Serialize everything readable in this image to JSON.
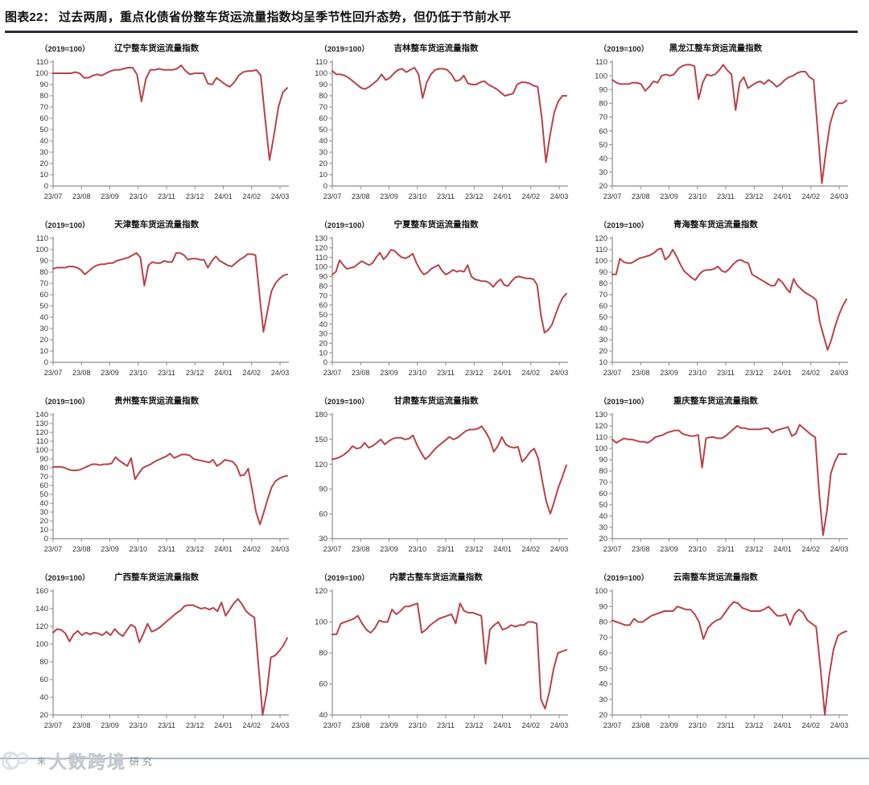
{
  "header": {
    "title": "图表22：  过去两周，重点化债省份整车货运流量指数均呈季节性回升态势，但仍低于节前水平"
  },
  "footer": {
    "watermark_prefix": "来",
    "watermark": "大数跨境",
    "watermark_suffix": "研究"
  },
  "style": {
    "line_color": "#b8424a",
    "axis_color": "#8c8c8c",
    "label_color": "#333333",
    "title_rule_color": "#2b2f3a"
  },
  "chart_data": [
    {
      "type": "line",
      "title": "辽宁整车货运流量指数",
      "unit_label": "（2019=100）",
      "ylim": [
        0,
        110
      ],
      "ystep": 10,
      "x_tick_labels": [
        "23/07",
        "23/08",
        "23/09",
        "23/10",
        "23/11",
        "23/12",
        "24/01",
        "24/02",
        "24/03"
      ],
      "values": [
        100,
        100,
        100,
        100,
        100,
        101,
        100,
        96,
        96,
        98,
        99,
        98,
        100,
        102,
        103,
        103,
        104,
        105,
        105,
        99,
        75,
        95,
        103,
        103,
        104,
        103,
        103,
        103,
        104,
        107,
        102,
        99,
        100,
        100,
        100,
        91,
        90,
        96,
        93,
        90,
        88,
        92,
        98,
        101,
        102,
        102,
        103,
        98,
        60,
        23,
        45,
        70,
        83,
        87
      ]
    },
    {
      "type": "line",
      "title": "吉林整车货运流量指数",
      "unit_label": "（2019=100）",
      "ylim": [
        0,
        110
      ],
      "ystep": 10,
      "x_tick_labels": [
        "23/07",
        "23/08",
        "23/09",
        "23/10",
        "23/11",
        "23/12",
        "24/01",
        "24/02",
        "24/03"
      ],
      "values": [
        102,
        99,
        99,
        98,
        96,
        93,
        90,
        87,
        86,
        88,
        91,
        94,
        99,
        94,
        96,
        100,
        103,
        104,
        101,
        103,
        105,
        99,
        78,
        92,
        99,
        103,
        104,
        104,
        103,
        99,
        93,
        94,
        98,
        91,
        90,
        90,
        92,
        93,
        90,
        88,
        86,
        83,
        80,
        81,
        82,
        90,
        92,
        92,
        91,
        89,
        88,
        60,
        21,
        45,
        65,
        75,
        80,
        80
      ]
    },
    {
      "type": "line",
      "title": "黑龙江整车货运流量指数",
      "unit_label": "（2019=100）",
      "ylim": [
        20,
        110
      ],
      "ystep": 10,
      "x_tick_labels": [
        "23/07",
        "23/08",
        "23/09",
        "23/10",
        "23/11",
        "23/12",
        "24/01",
        "24/02",
        "24/03"
      ],
      "values": [
        97,
        95,
        94,
        94,
        94,
        95,
        95,
        94,
        89,
        92,
        96,
        95,
        100,
        101,
        100,
        101,
        105,
        107,
        108,
        108,
        107,
        83,
        95,
        101,
        100,
        101,
        104,
        108,
        104,
        101,
        75,
        95,
        99,
        91,
        93,
        95,
        96,
        94,
        97,
        95,
        92,
        94,
        97,
        99,
        100,
        102,
        103,
        103,
        99,
        97,
        60,
        22,
        45,
        65,
        75,
        80,
        80,
        82
      ]
    },
    {
      "type": "line",
      "title": "天津整车货运流量指数",
      "unit_label": "（2019=100）",
      "ylim": [
        0,
        110
      ],
      "ystep": 10,
      "x_tick_labels": [
        "23/07",
        "23/08",
        "23/09",
        "23/10",
        "23/11",
        "23/12",
        "24/01",
        "24/02",
        "24/03"
      ],
      "values": [
        83,
        84,
        84,
        84,
        85,
        85,
        84,
        82,
        78,
        81,
        84,
        86,
        87,
        87,
        88,
        88,
        90,
        91,
        92,
        93,
        95,
        97,
        93,
        68,
        86,
        89,
        88,
        88,
        90,
        89,
        89,
        97,
        97,
        95,
        91,
        92,
        92,
        91,
        91,
        84,
        90,
        94,
        90,
        88,
        86,
        85,
        88,
        91,
        93,
        96,
        96,
        95,
        60,
        27,
        45,
        63,
        70,
        74,
        77,
        78
      ]
    },
    {
      "type": "line",
      "title": "宁夏整车货运流量指数",
      "unit_label": "（2019=100）",
      "ylim": [
        0,
        130
      ],
      "ystep": 10,
      "x_tick_labels": [
        "23/07",
        "23/08",
        "23/09",
        "23/10",
        "23/11",
        "23/12",
        "24/01",
        "24/02",
        "24/03"
      ],
      "values": [
        92,
        95,
        107,
        102,
        98,
        99,
        100,
        103,
        106,
        104,
        102,
        104,
        110,
        115,
        108,
        112,
        118,
        117,
        113,
        110,
        109,
        111,
        114,
        104,
        97,
        92,
        94,
        98,
        100,
        102,
        96,
        92,
        94,
        97,
        95,
        96,
        95,
        102,
        90,
        87,
        86,
        85,
        85,
        83,
        79,
        84,
        87,
        81,
        80,
        85,
        89,
        90,
        89,
        88,
        88,
        87,
        81,
        50,
        31,
        34,
        39,
        50,
        60,
        68,
        72
      ]
    },
    {
      "type": "line",
      "title": "青海整车货运流量指数",
      "unit_label": "（2019=100）",
      "ylim": [
        10,
        120
      ],
      "ystep": 10,
      "x_tick_labels": [
        "23/07",
        "23/08",
        "23/09",
        "23/10",
        "23/11",
        "23/12",
        "24/01",
        "24/02",
        "24/03"
      ],
      "values": [
        88,
        88,
        102,
        99,
        98,
        98,
        100,
        102,
        103,
        104,
        105,
        107,
        110,
        111,
        101,
        104,
        110,
        104,
        97,
        91,
        88,
        85,
        83,
        88,
        91,
        92,
        92,
        93,
        95,
        91,
        90,
        93,
        97,
        100,
        101,
        99,
        98,
        88,
        86,
        84,
        82,
        80,
        78,
        78,
        84,
        81,
        76,
        72,
        84,
        78,
        75,
        72,
        70,
        68,
        65,
        45,
        33,
        21,
        30,
        42,
        52,
        60,
        66
      ]
    },
    {
      "type": "line",
      "title": "贵州整车货运流量指数",
      "unit_label": "（2019=100）",
      "ylim": [
        0,
        140
      ],
      "ystep": 10,
      "x_tick_labels": [
        "23/07",
        "23/08",
        "23/09",
        "23/10",
        "23/11",
        "23/12",
        "24/01",
        "24/02",
        "24/03"
      ],
      "values": [
        81,
        81,
        81,
        80,
        78,
        77,
        77,
        78,
        80,
        82,
        84,
        84,
        83,
        84,
        84,
        85,
        92,
        88,
        85,
        82,
        91,
        67,
        74,
        80,
        82,
        84,
        87,
        89,
        91,
        93,
        96,
        91,
        93,
        95,
        95,
        94,
        90,
        89,
        88,
        87,
        86,
        89,
        82,
        85,
        89,
        88,
        87,
        82,
        71,
        72,
        79,
        55,
        30,
        16,
        30,
        45,
        58,
        65,
        68,
        70,
        71
      ]
    },
    {
      "type": "line",
      "title": "甘肃整车货运流量指数",
      "unit_label": "（2019=100）",
      "ylim": [
        30,
        180
      ],
      "ystep": 30,
      "x_tick_labels": [
        "23/07",
        "23/08",
        "23/09",
        "23/10",
        "23/11",
        "23/12",
        "24/01",
        "24/02",
        "24/03"
      ],
      "values": [
        126,
        127,
        129,
        132,
        136,
        142,
        139,
        140,
        146,
        140,
        142,
        146,
        150,
        144,
        148,
        151,
        152,
        152,
        150,
        151,
        155,
        143,
        134,
        126,
        130,
        136,
        141,
        145,
        149,
        153,
        150,
        152,
        156,
        160,
        162,
        162,
        163,
        166,
        159,
        150,
        135,
        142,
        153,
        144,
        141,
        140,
        141,
        123,
        128,
        135,
        139,
        127,
        100,
        75,
        60,
        75,
        92,
        105,
        119
      ]
    },
    {
      "type": "line",
      "title": "重庆整车货运流量指数",
      "unit_label": "（2019=100）",
      "ylim": [
        20,
        130
      ],
      "ystep": 10,
      "x_tick_labels": [
        "23/07",
        "23/08",
        "23/09",
        "23/10",
        "23/11",
        "23/12",
        "24/01",
        "24/02",
        "24/03"
      ],
      "values": [
        108,
        105,
        107,
        109,
        108,
        108,
        107,
        106,
        106,
        105,
        107,
        110,
        111,
        112,
        114,
        115,
        116,
        116,
        113,
        112,
        111,
        111,
        112,
        83,
        109,
        110,
        110,
        109,
        109,
        111,
        114,
        117,
        120,
        118,
        118,
        117,
        117,
        117,
        117,
        118,
        118,
        114,
        116,
        117,
        118,
        119,
        111,
        113,
        121,
        118,
        115,
        112,
        110,
        60,
        23,
        45,
        78,
        88,
        95,
        95,
        95
      ]
    },
    {
      "type": "line",
      "title": "广西整车货运流量指数",
      "unit_label": "（2019=100）",
      "ylim": [
        20,
        160
      ],
      "ystep": 20,
      "x_tick_labels": [
        "23/07",
        "23/08",
        "23/09",
        "23/10",
        "23/11",
        "23/12",
        "24/01",
        "24/02",
        "24/03"
      ],
      "values": [
        113,
        117,
        116,
        112,
        103,
        111,
        115,
        110,
        113,
        111,
        113,
        112,
        110,
        114,
        110,
        117,
        112,
        109,
        116,
        122,
        119,
        102,
        112,
        123,
        114,
        116,
        119,
        123,
        127,
        131,
        135,
        138,
        143,
        144,
        144,
        142,
        140,
        141,
        139,
        141,
        137,
        147,
        132,
        139,
        146,
        151,
        145,
        137,
        133,
        130,
        75,
        20,
        45,
        85,
        87,
        92,
        98,
        107
      ]
    },
    {
      "type": "line",
      "title": "内蒙古整车货运流量指数",
      "unit_label": "（2019=100）",
      "ylim": [
        40,
        120
      ],
      "ystep": 20,
      "x_tick_labels": [
        "23/07",
        "23/08",
        "23/09",
        "23/10",
        "23/11",
        "23/12",
        "24/01",
        "24/02",
        "24/03"
      ],
      "values": [
        92,
        92,
        99,
        100,
        101,
        102,
        104,
        99,
        95,
        93,
        96,
        101,
        100,
        100,
        108,
        105,
        107,
        110,
        110,
        111,
        112,
        93,
        95,
        98,
        100,
        102,
        103,
        104,
        105,
        99,
        112,
        107,
        106,
        106,
        105,
        104,
        73,
        95,
        98,
        100,
        95,
        96,
        98,
        97,
        98,
        98,
        100,
        100,
        99,
        50,
        44,
        55,
        70,
        80,
        81,
        82
      ]
    },
    {
      "type": "line",
      "title": "云南整车货运流量指数",
      "unit_label": "（2019=100）",
      "ylim": [
        20,
        100
      ],
      "ystep": 10,
      "x_tick_labels": [
        "23/07",
        "23/08",
        "23/09",
        "23/10",
        "23/11",
        "23/12",
        "24/01",
        "24/02",
        "24/03"
      ],
      "values": [
        81,
        80,
        79,
        78,
        78,
        82,
        80,
        80,
        82,
        84,
        85,
        86,
        87,
        87,
        87,
        90,
        89,
        88,
        88,
        85,
        80,
        69,
        76,
        79,
        81,
        82,
        86,
        90,
        93,
        92,
        89,
        88,
        87,
        87,
        87,
        88,
        90,
        87,
        84,
        84,
        85,
        78,
        85,
        88,
        86,
        81,
        79,
        77,
        50,
        20,
        45,
        62,
        71,
        73,
        74
      ]
    }
  ]
}
